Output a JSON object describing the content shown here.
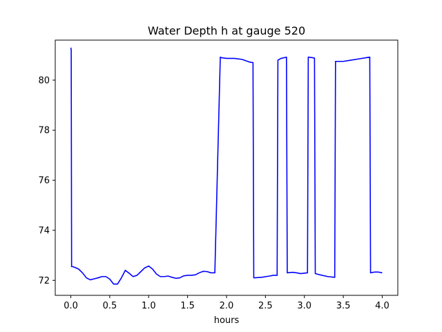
{
  "chart_data": {
    "type": "line",
    "title": "Water Depth h at gauge 520",
    "xlabel": "hours",
    "ylabel": "",
    "xlim": [
      -0.2,
      4.2
    ],
    "ylim": [
      71.4,
      81.6
    ],
    "xticks": [
      0.0,
      0.5,
      1.0,
      1.5,
      2.0,
      2.5,
      3.0,
      3.5,
      4.0
    ],
    "xtick_labels": [
      "0.0",
      "0.5",
      "1.0",
      "1.5",
      "2.0",
      "2.5",
      "3.0",
      "3.5",
      "4.0"
    ],
    "yticks": [
      72,
      74,
      76,
      78,
      80
    ],
    "ytick_labels": [
      "72",
      "74",
      "76",
      "78",
      "80"
    ],
    "grid": false,
    "series": [
      {
        "color": "#0000ff",
        "x": [
          0.0,
          0.005,
          0.01,
          0.02,
          0.05,
          0.1,
          0.15,
          0.2,
          0.25,
          0.3,
          0.35,
          0.4,
          0.45,
          0.5,
          0.55,
          0.6,
          0.65,
          0.7,
          0.75,
          0.8,
          0.85,
          0.9,
          0.95,
          1.0,
          1.05,
          1.1,
          1.15,
          1.2,
          1.25,
          1.3,
          1.35,
          1.4,
          1.45,
          1.5,
          1.55,
          1.6,
          1.65,
          1.7,
          1.75,
          1.8,
          1.85,
          1.92,
          1.93,
          2.0,
          2.1,
          2.2,
          2.3,
          2.34,
          2.35,
          2.45,
          2.55,
          2.6,
          2.65,
          2.66,
          2.7,
          2.77,
          2.78,
          2.85,
          2.9,
          2.95,
          3.04,
          3.05,
          3.1,
          3.13,
          3.14,
          3.2,
          3.3,
          3.39,
          3.4,
          3.5,
          3.6,
          3.7,
          3.8,
          3.84,
          3.85,
          3.9,
          3.95,
          4.0
        ],
        "y": [
          81.3,
          81.2,
          72.55,
          72.55,
          72.52,
          72.45,
          72.3,
          72.1,
          72.02,
          72.06,
          72.1,
          72.15,
          72.15,
          72.05,
          71.85,
          71.85,
          72.1,
          72.4,
          72.28,
          72.15,
          72.2,
          72.35,
          72.5,
          72.57,
          72.45,
          72.25,
          72.15,
          72.15,
          72.17,
          72.12,
          72.08,
          72.1,
          72.18,
          72.2,
          72.2,
          72.22,
          72.3,
          72.36,
          72.35,
          72.3,
          72.3,
          80.92,
          80.9,
          80.87,
          80.87,
          80.83,
          80.72,
          80.7,
          72.1,
          72.12,
          72.17,
          72.2,
          72.2,
          80.8,
          80.87,
          80.92,
          72.3,
          72.32,
          72.3,
          72.27,
          72.3,
          80.92,
          80.9,
          80.88,
          72.27,
          72.22,
          72.15,
          72.12,
          80.75,
          80.75,
          80.8,
          80.85,
          80.9,
          80.92,
          72.3,
          72.33,
          72.33,
          72.3
        ]
      }
    ]
  }
}
